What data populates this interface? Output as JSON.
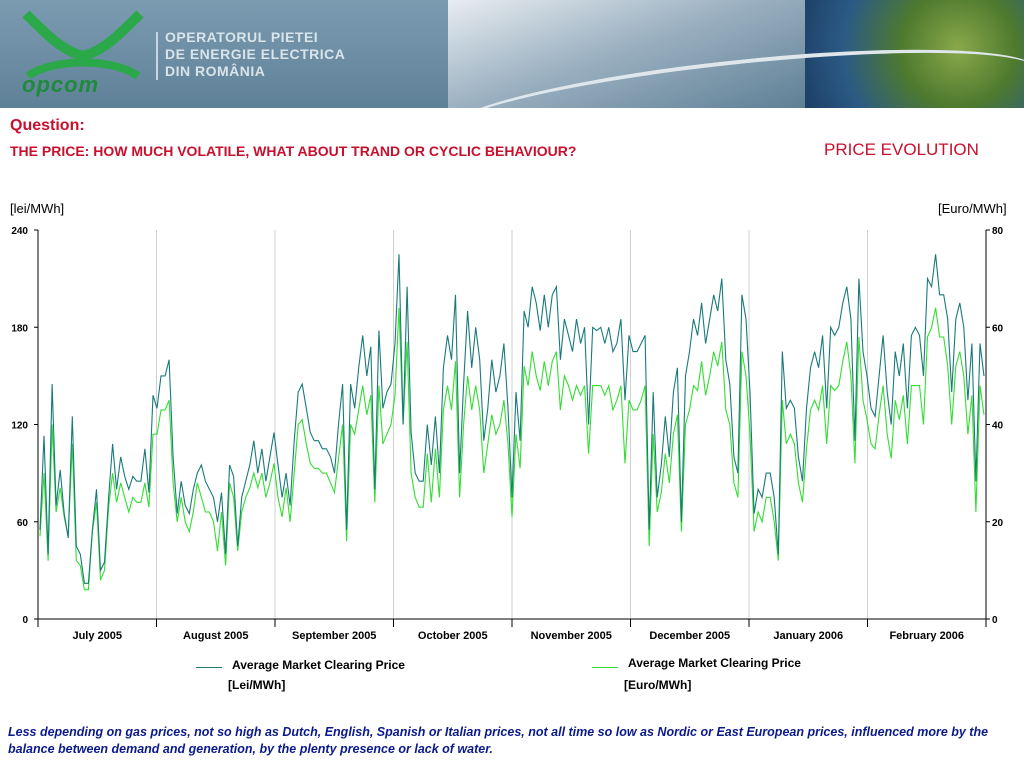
{
  "header": {
    "logo_text": "opcom",
    "org_lines": [
      "OPERATORUL PIETEI",
      "DE ENERGIE ELECTRICA",
      "DIN ROMÂNIA"
    ]
  },
  "question": "Question:",
  "subtitle": "THE PRICE: HOW MUCH VOLATILE, WHAT ABOUT TRAND OR CYCLIC BEHAVIOUR?",
  "footnote": "Less depending on gas prices, not so high as Dutch, English, Spanish or Italian prices, not all time so low as Nordic or East European prices, influenced more by the balance between demand and generation, by the plenty presence or lack of water.",
  "colors": {
    "lei_series": "#1a7a7a",
    "euro_series": "#33dd33",
    "title_red": "#c8102e",
    "footnote_blue": "#0b1a8a"
  },
  "chart_data": {
    "type": "line",
    "title": "PRICE EVOLUTION",
    "ylabel_left": "[lei/MWh]",
    "ylabel_right": "[Euro/MWh]",
    "ylim_left": [
      0,
      240
    ],
    "ylim_right": [
      0,
      80
    ],
    "yticks_left": [
      0,
      60,
      120,
      180,
      240
    ],
    "yticks_right": [
      0,
      20,
      40,
      60,
      80
    ],
    "grid": "vertical",
    "months": [
      "July 2005",
      "August 2005",
      "September 2005",
      "October 2005",
      "November 2005",
      "December 2005",
      "January 2006",
      "February 2006"
    ],
    "series": [
      {
        "name": "Average Market Clearing Price",
        "unit": "[Lei/MWh]",
        "axis": "left",
        "values": [
          55,
          113,
          40,
          145,
          70,
          92,
          65,
          50,
          125,
          45,
          40,
          22,
          22,
          55,
          80,
          30,
          35,
          75,
          108,
          80,
          100,
          88,
          80,
          88,
          85,
          85,
          105,
          78,
          138,
          130,
          150,
          150,
          160,
          100,
          65,
          85,
          70,
          65,
          80,
          90,
          95,
          85,
          80,
          75,
          60,
          78,
          40,
          95,
          88,
          45,
          75,
          85,
          95,
          110,
          90,
          105,
          85,
          100,
          115,
          95,
          75,
          90,
          70,
          110,
          140,
          145,
          130,
          115,
          110,
          110,
          105,
          105,
          100,
          90,
          120,
          145,
          55,
          145,
          130,
          155,
          175,
          150,
          168,
          80,
          178,
          130,
          140,
          145,
          170,
          225,
          120,
          205,
          115,
          90,
          85,
          85,
          120,
          95,
          125,
          90,
          155,
          175,
          160,
          200,
          90,
          145,
          190,
          155,
          180,
          160,
          110,
          130,
          160,
          140,
          150,
          170,
          130,
          75,
          140,
          110,
          190,
          180,
          205,
          195,
          178,
          200,
          180,
          200,
          205,
          160,
          185,
          175,
          165,
          185,
          170,
          180,
          120,
          180,
          178,
          180,
          170,
          180,
          165,
          170,
          185,
          135,
          175,
          165,
          165,
          170,
          175,
          55,
          140,
          75,
          95,
          125,
          100,
          140,
          155,
          60,
          150,
          165,
          185,
          175,
          195,
          170,
          185,
          200,
          190,
          210,
          160,
          145,
          100,
          90,
          200,
          185,
          140,
          65,
          80,
          75,
          90,
          90,
          75,
          40,
          165,
          130,
          135,
          130,
          100,
          85,
          130,
          155,
          165,
          155,
          175,
          130,
          180,
          175,
          180,
          195,
          205,
          185,
          110,
          210,
          165,
          150,
          130,
          125,
          150,
          175,
          140,
          120,
          165,
          150,
          170,
          130,
          175,
          180,
          175,
          150,
          210,
          205,
          225,
          200,
          200,
          185,
          140,
          185,
          195,
          180,
          135,
          170,
          85,
          170,
          150
        ],
        "color": "#1a7a7a"
      },
      {
        "name": "Average Market Clearing Price",
        "unit": "[Euro/MWh]",
        "axis": "right",
        "values": [
          17,
          30,
          12,
          40,
          22,
          27,
          21,
          17,
          36,
          12,
          11,
          6,
          6,
          18,
          24,
          8,
          10,
          23,
          30,
          24,
          28,
          25,
          22,
          25,
          24,
          24,
          28,
          23,
          38,
          38,
          43,
          43,
          45,
          28,
          20,
          25,
          20,
          18,
          22,
          28,
          25,
          22,
          22,
          20,
          14,
          22,
          11,
          28,
          25,
          14,
          22,
          25,
          27,
          30,
          27,
          30,
          25,
          28,
          32,
          25,
          21,
          27,
          20,
          30,
          40,
          41,
          36,
          32,
          31,
          31,
          30,
          30,
          28,
          26,
          33,
          40,
          16,
          40,
          38,
          43,
          48,
          42,
          46,
          24,
          48,
          36,
          38,
          40,
          46,
          64,
          40,
          57,
          30,
          25,
          23,
          23,
          34,
          24,
          35,
          25,
          43,
          48,
          43,
          53,
          25,
          40,
          50,
          43,
          48,
          43,
          30,
          36,
          42,
          38,
          40,
          45,
          36,
          21,
          38,
          31,
          52,
          48,
          55,
          50,
          47,
          53,
          48,
          53,
          55,
          43,
          50,
          48,
          45,
          48,
          46,
          48,
          34,
          48,
          48,
          48,
          46,
          48,
          43,
          45,
          48,
          32,
          45,
          43,
          43,
          45,
          48,
          15,
          38,
          22,
          26,
          34,
          28,
          38,
          42,
          18,
          40,
          43,
          48,
          47,
          53,
          46,
          50,
          55,
          52,
          57,
          43,
          40,
          28,
          25,
          55,
          50,
          38,
          18,
          22,
          20,
          25,
          25,
          20,
          12,
          45,
          36,
          38,
          36,
          28,
          24,
          35,
          43,
          45,
          43,
          48,
          36,
          48,
          47,
          48,
          53,
          57,
          50,
          32,
          58,
          45,
          41,
          36,
          35,
          42,
          48,
          38,
          33,
          45,
          41,
          46,
          36,
          48,
          48,
          48,
          40,
          58,
          60,
          64,
          58,
          58,
          52,
          40,
          52,
          55,
          50,
          38,
          46,
          22,
          48,
          42
        ],
        "color": "#33dd33"
      }
    ]
  }
}
